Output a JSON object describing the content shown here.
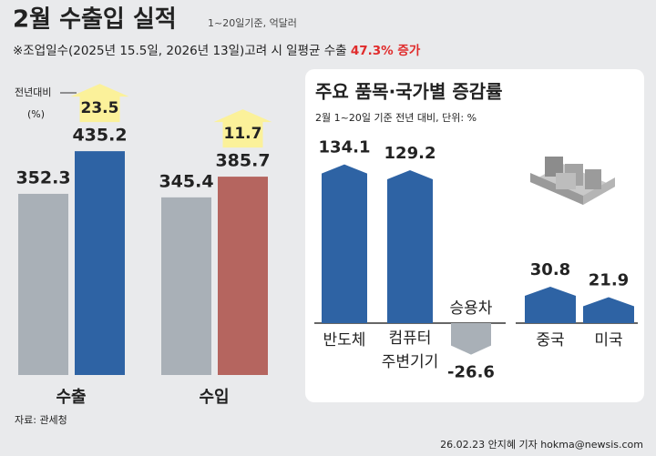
{
  "chart_data": [
    {
      "type": "bar",
      "title": "2월 수출입 실적",
      "subtitle": "1~20일기준, 억달러",
      "note": "※조업일수(2025년 15.5일, 2026년 13일)고려 시 일평균 수출",
      "note_highlight": "47.3% 증가",
      "highlight_color": "#e02b2b",
      "categories": [
        "수출",
        "수입"
      ],
      "series": [
        {
          "colors": [
            "#a9b0b7",
            "#a9b0b7"
          ],
          "values": [
            352.3,
            345.4
          ]
        },
        {
          "colors": [
            "#2e63a4",
            "#b5655f"
          ],
          "values": [
            435.2,
            385.7
          ]
        }
      ],
      "change_label": [
        "전년대비",
        "(%)"
      ],
      "changes": [
        23.5,
        11.7
      ],
      "change_color": "#fbf19a",
      "source": "자료: 관세청"
    },
    {
      "type": "arrow-bar",
      "title": "주요 품목·국가별 증감률",
      "subtitle": "2월 1~20일 기준 전년 대비, 단위: %",
      "categories": [
        "반도체",
        [
          "컴퓨터",
          "주변기기"
        ],
        "승용차",
        "중국",
        "미국"
      ],
      "values": [
        134.1,
        129.2,
        -26.6,
        30.8,
        21.9
      ],
      "colors": [
        "#2e63a4",
        "#2e63a4",
        "#a9b0b7",
        "#2e63a4",
        "#2e63a4"
      ]
    }
  ],
  "footer": "26.02.23 안지혜 기자 hokma@newsis.com"
}
